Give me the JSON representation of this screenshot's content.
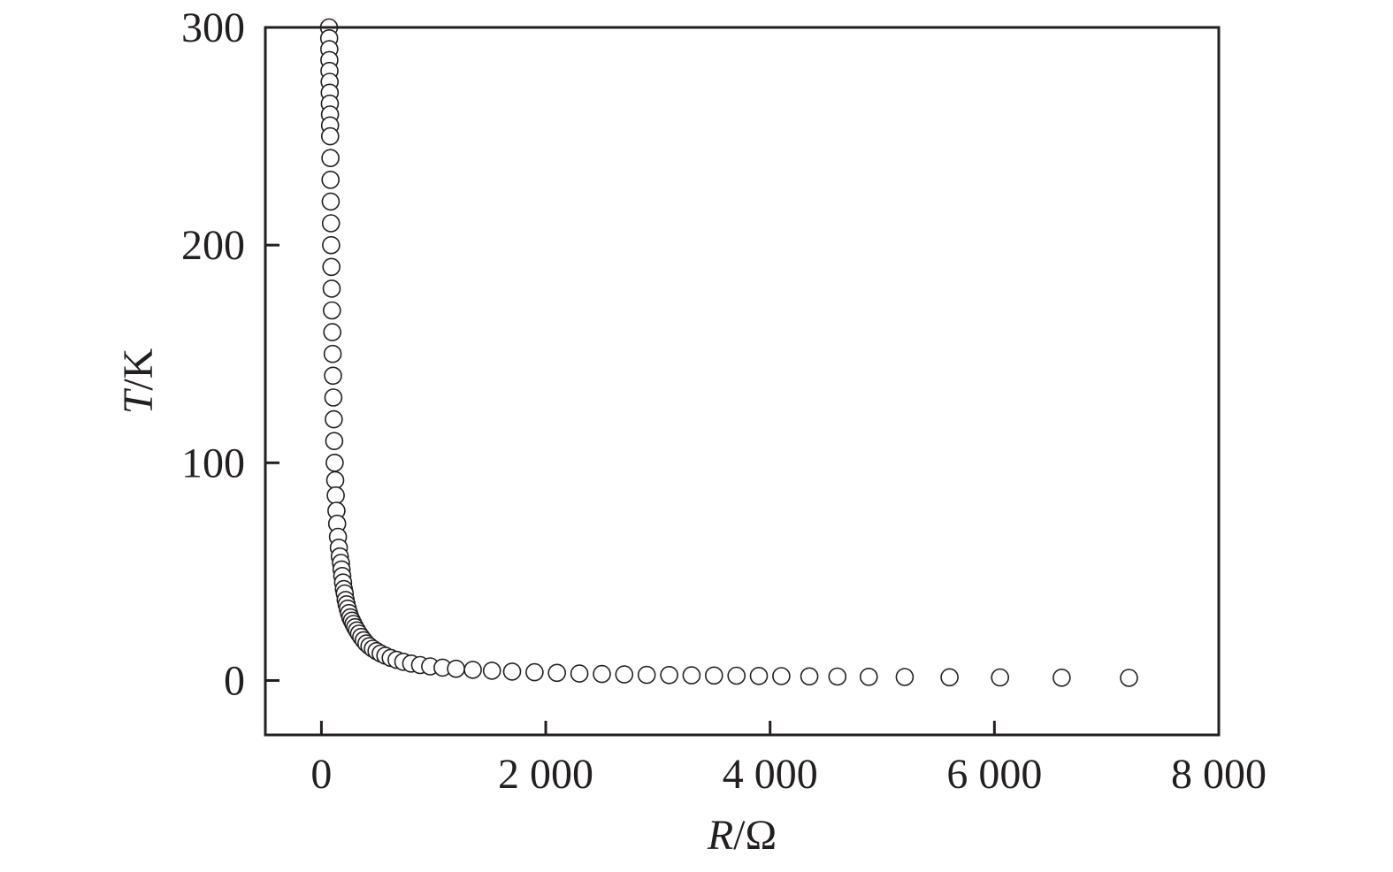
{
  "chart_data": {
    "type": "scatter",
    "xlabel": {
      "var": "R",
      "unit": "/Ω"
    },
    "ylabel": {
      "var": "T",
      "unit": "/K"
    },
    "xlim": [
      -500,
      8000
    ],
    "ylim": [
      -25,
      300
    ],
    "xticks": [
      {
        "value": 0,
        "label": "0"
      },
      {
        "value": 2000,
        "label": "2 000"
      },
      {
        "value": 4000,
        "label": "4 000"
      },
      {
        "value": 6000,
        "label": "6 000"
      },
      {
        "value": 8000,
        "label": "8 000"
      }
    ],
    "yticks": [
      {
        "value": 0,
        "label": "0"
      },
      {
        "value": 100,
        "label": "100"
      },
      {
        "value": 200,
        "label": "200"
      },
      {
        "value": 300,
        "label": "300"
      }
    ],
    "marker": "open-circle",
    "grid": false,
    "series": [
      {
        "x": [
          68,
          69,
          70,
          71,
          72,
          73,
          74,
          75,
          76,
          77,
          78,
          80,
          81,
          83,
          85,
          87,
          89,
          91,
          94,
          97,
          100,
          103,
          106,
          110,
          114,
          118,
          123,
          128,
          134,
          140,
          147,
          155,
          164,
          174,
          180,
          186,
          193,
          200,
          208,
          216,
          225,
          235,
          246,
          258,
          271,
          285,
          300,
          317,
          335,
          355,
          377,
          401,
          428,
          458,
          491,
          528,
          570,
          617,
          670,
          730,
          800,
          880,
          970,
          1080,
          1200,
          1350,
          1520,
          1700,
          1900,
          2100,
          2300,
          2500,
          2700,
          2900,
          3100,
          3300,
          3500,
          3700,
          3900,
          4100,
          4350,
          4600,
          4880,
          5200,
          5600,
          6050,
          6600,
          7200
        ],
        "y": [
          300,
          295,
          290,
          285,
          280,
          275,
          270,
          265,
          260,
          255,
          250,
          240,
          230,
          220,
          210,
          200,
          190,
          180,
          170,
          160,
          150,
          140,
          130,
          120,
          110,
          100,
          92,
          85,
          78,
          72,
          66,
          61,
          57,
          54,
          51,
          48,
          45,
          42,
          40,
          37,
          35,
          33,
          31,
          29,
          27.5,
          26,
          24.5,
          23,
          21.5,
          20,
          18.5,
          17,
          15.8,
          14.6,
          13.5,
          12.4,
          11.4,
          10.4,
          9.5,
          8.6,
          7.8,
          7.1,
          6.5,
          5.9,
          5.4,
          4.9,
          4.5,
          4.1,
          3.8,
          3.5,
          3.2,
          3.0,
          2.8,
          2.6,
          2.5,
          2.4,
          2.3,
          2.2,
          2.1,
          2.0,
          1.9,
          1.8,
          1.7,
          1.6,
          1.5,
          1.4,
          1.3,
          1.2
        ]
      }
    ]
  }
}
